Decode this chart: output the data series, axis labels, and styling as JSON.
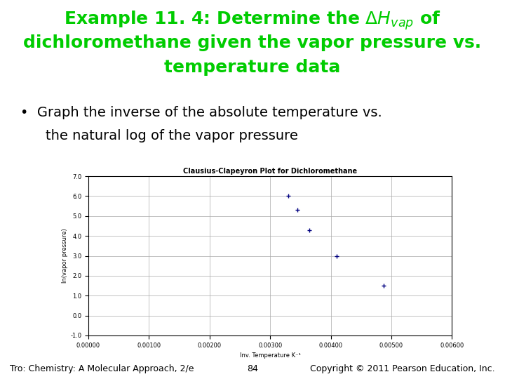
{
  "chart_title": "Clausius-Clapeyron Plot for Dichloromethane",
  "xlabel": "Inv. Temperature K⁻¹",
  "ylabel": "ln(vapor pressure)",
  "x_data": [
    0.003299,
    0.003448,
    0.00365,
    0.0041,
    0.004878
  ],
  "y_data": [
    6.02,
    5.3,
    4.3,
    3.0,
    1.5
  ],
  "xlim": [
    0.0,
    0.006
  ],
  "ylim": [
    -1.0,
    7.0
  ],
  "xticks": [
    0.0,
    0.001,
    0.002,
    0.003,
    0.004,
    0.005,
    0.006
  ],
  "yticks": [
    -1.0,
    0.0,
    1.0,
    2.0,
    3.0,
    4.0,
    5.0,
    6.0,
    7.0
  ],
  "marker_color": "#000080",
  "marker": "+",
  "marker_size": 5,
  "marker_linewidth": 1.0,
  "grid_color": "#aaaaaa",
  "bg_color": "#ffffff",
  "chart_title_fontsize": 7,
  "axis_label_fontsize": 6,
  "tick_fontsize": 6,
  "page_title_line1": "Example 11. 4: Determine the $\\Delta H_{vap}$ of",
  "page_title_line2": "dichloromethane given the vapor pressure vs.",
  "page_title_line3": "temperature data",
  "bullet_line1": "•  Graph the inverse of the absolute temperature vs.",
  "bullet_line2": "    the natural log of the vapor pressure",
  "footer_left": "Tro: Chemistry: A Molecular Approach, 2/e",
  "footer_center": "84",
  "footer_right": "Copyright © 2011 Pearson Education, Inc.",
  "page_title_color": "#00cc00",
  "bullet_color": "#000000",
  "footer_color": "#000000",
  "page_title_fontsize": 18,
  "bullet_fontsize": 14,
  "footer_fontsize": 9
}
